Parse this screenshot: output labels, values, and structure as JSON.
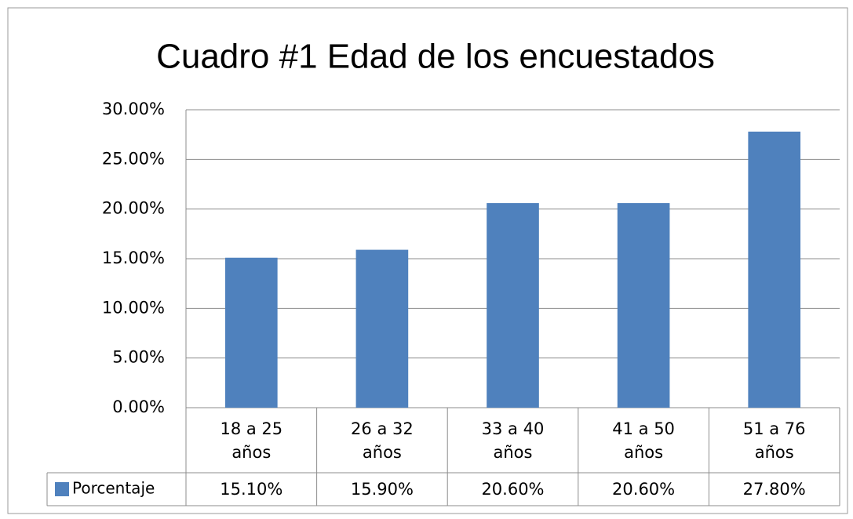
{
  "chart_data": {
    "type": "bar",
    "title": "Cuadro #1 Edad de los encuestados",
    "categories": [
      "18 a 25 años",
      "26 a 32 años",
      "33 a 40 años",
      "41 a 50 años",
      "51 a 76 años"
    ],
    "series": [
      {
        "name": "Porcentaje",
        "color": "#4f81bd",
        "values": [
          15.1,
          15.9,
          20.6,
          20.6,
          27.8
        ],
        "value_labels": [
          "15.10%",
          "15.90%",
          "20.60%",
          "20.60%",
          "27.80%"
        ]
      }
    ],
    "ylim": [
      0,
      30
    ],
    "yticks": [
      {
        "value": 0,
        "label": "0.00%"
      },
      {
        "value": 5,
        "label": "5.00%"
      },
      {
        "value": 10,
        "label": "10.00%"
      },
      {
        "value": 15,
        "label": "15.00%"
      },
      {
        "value": 20,
        "label": "20.00%"
      },
      {
        "value": 25,
        "label": "25.00%"
      },
      {
        "value": 30,
        "label": "30.00%"
      }
    ],
    "grid": true
  }
}
